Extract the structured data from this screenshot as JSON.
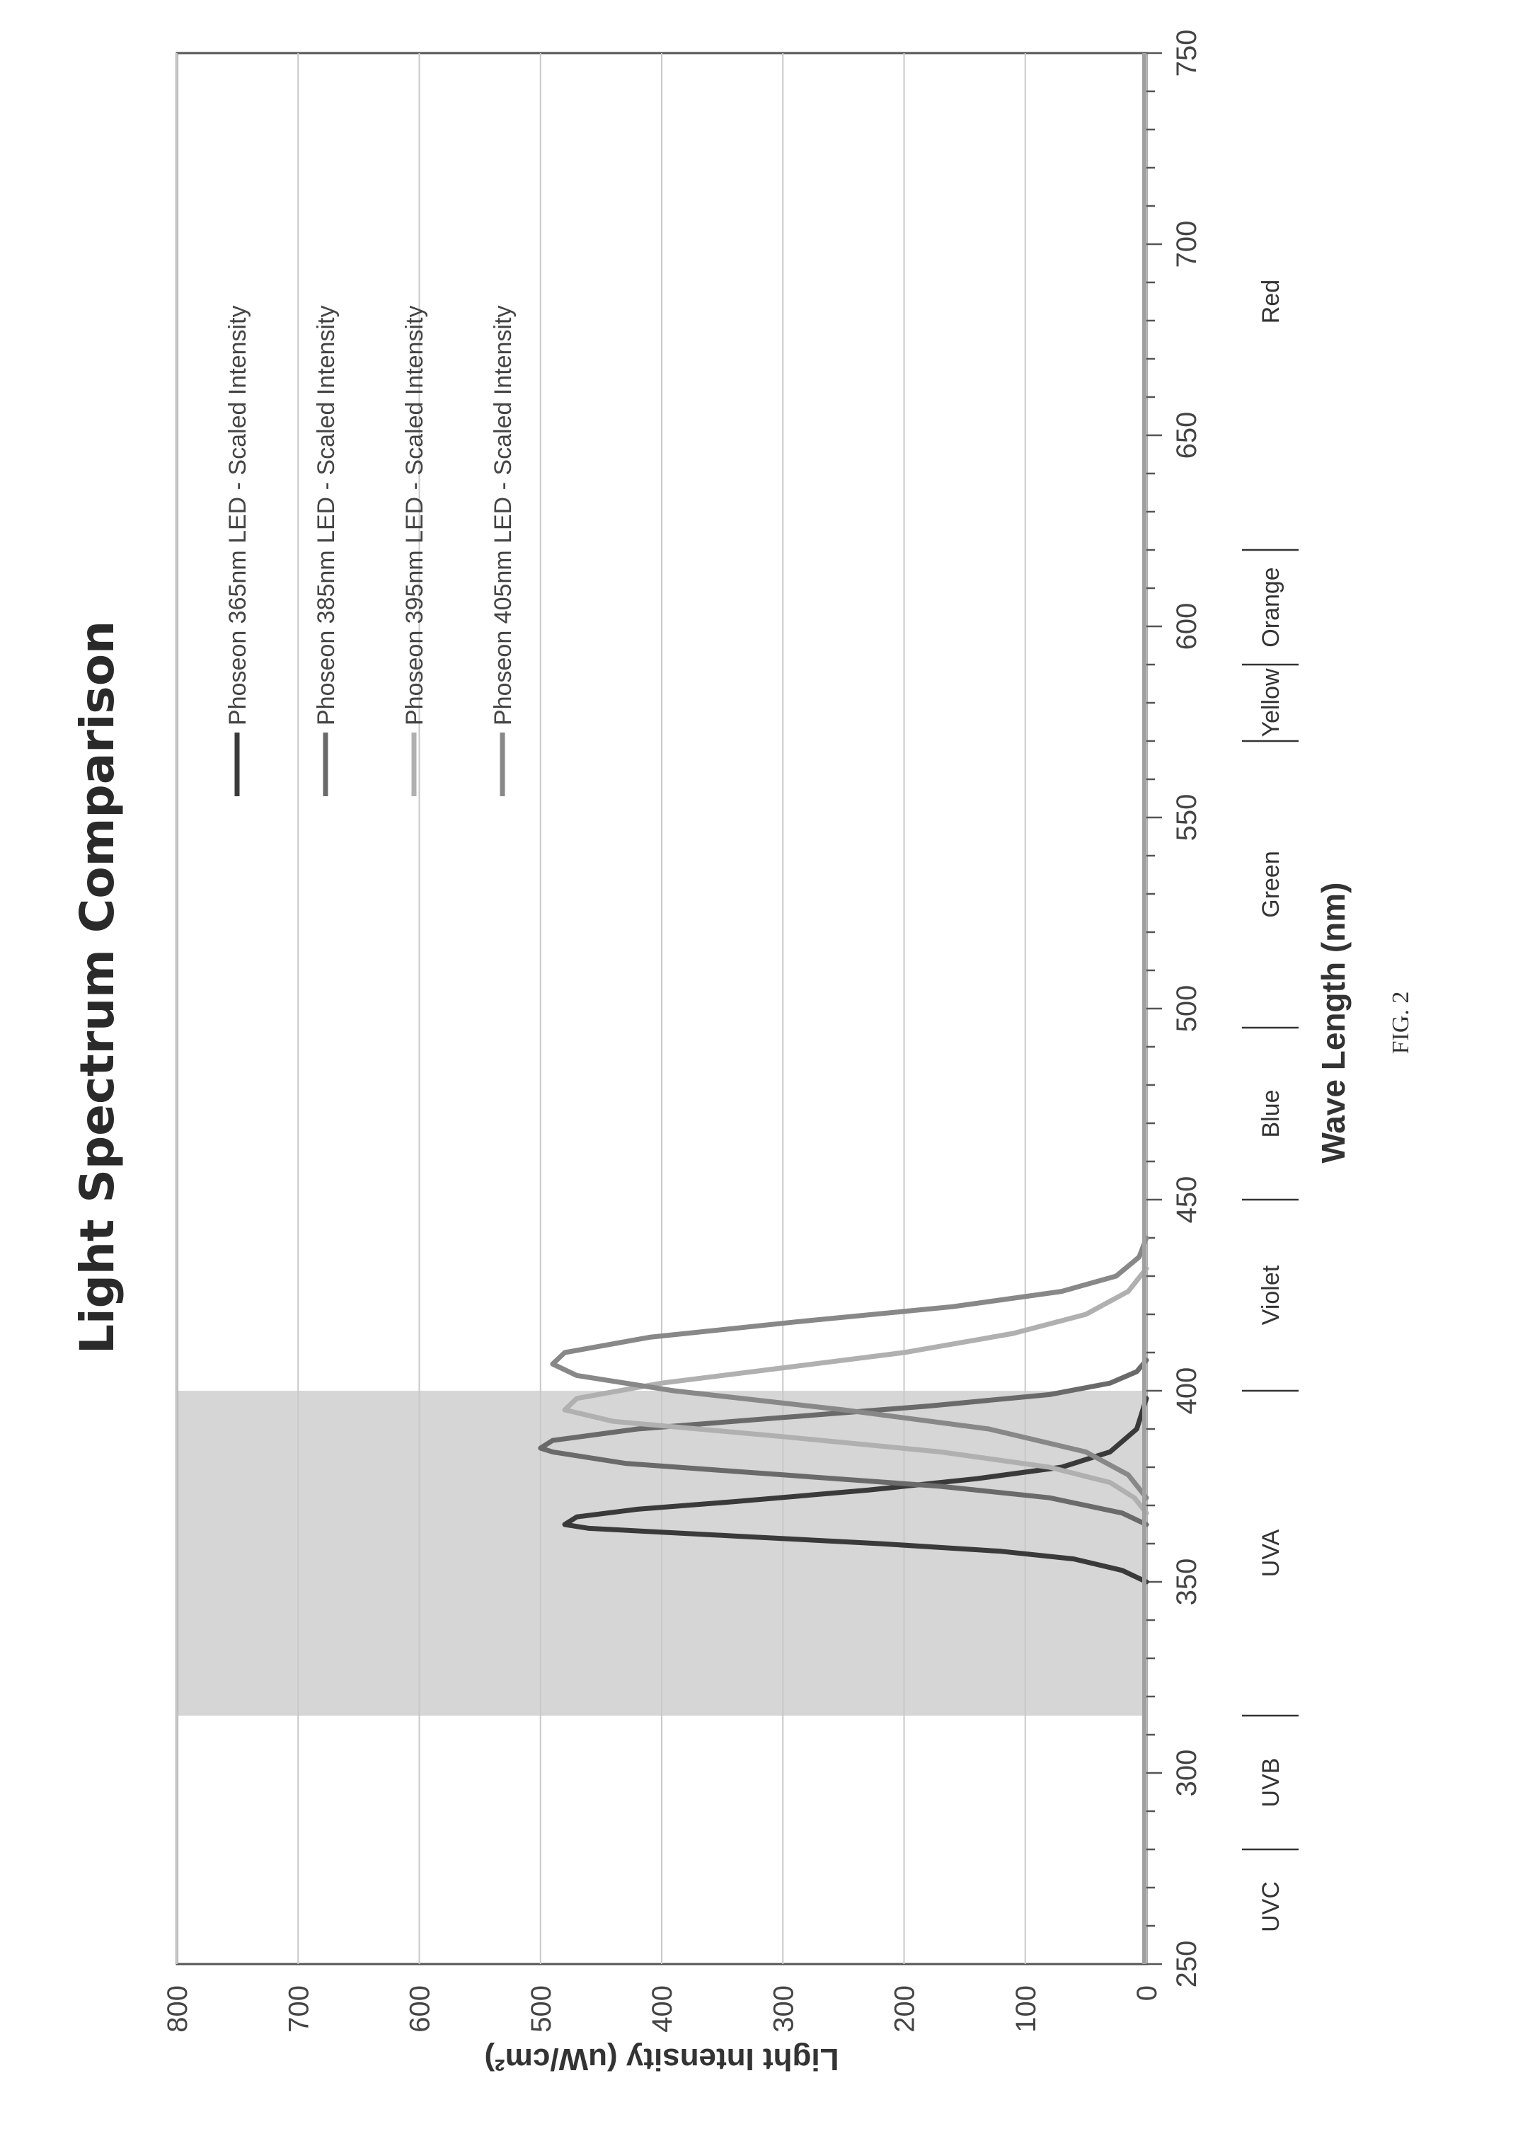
{
  "figure": {
    "caption": "FIG. 2"
  },
  "chart_data": {
    "type": "line",
    "title": "Light Spectrum Comparison",
    "xlabel": "Wave Length (nm)",
    "ylabel": "Light Intensity (uW/cm²)",
    "xlim": [
      250,
      750
    ],
    "ylim": [
      0,
      800
    ],
    "x_ticks": [
      "250",
      "300",
      "350",
      "400",
      "450",
      "500",
      "550",
      "600",
      "650",
      "700",
      "750"
    ],
    "y_ticks": [
      "0",
      "100",
      "200",
      "300",
      "400",
      "500",
      "600",
      "700",
      "800"
    ],
    "grid": true,
    "legend_position": "top-right",
    "shaded_region": {
      "x_start": 315,
      "x_end": 400,
      "color": "#c8c8c8"
    },
    "spectral_bands": [
      {
        "label": "UVC",
        "x_start": 250,
        "x_end": 280
      },
      {
        "label": "UVB",
        "x_start": 280,
        "x_end": 315
      },
      {
        "label": "UVA",
        "x_start": 315,
        "x_end": 400
      },
      {
        "label": "Violet",
        "x_start": 400,
        "x_end": 450
      },
      {
        "label": "Blue",
        "x_start": 450,
        "x_end": 495
      },
      {
        "label": "Green",
        "x_start": 495,
        "x_end": 570
      },
      {
        "label": "Yellow",
        "x_start": 570,
        "x_end": 590
      },
      {
        "label": "Orange",
        "x_start": 590,
        "x_end": 620
      },
      {
        "label": "Red",
        "x_start": 620,
        "x_end": 750
      }
    ],
    "series": [
      {
        "name": "Phoseon 365nm LED - Scaled Intensity",
        "color": "#3a3a3a",
        "x": [
          350,
          353,
          356,
          358,
          360,
          362,
          364,
          365,
          367,
          369,
          371,
          374,
          377,
          380,
          384,
          390,
          398
        ],
        "y": [
          0,
          20,
          60,
          120,
          220,
          340,
          460,
          480,
          470,
          420,
          340,
          230,
          140,
          70,
          30,
          8,
          0
        ]
      },
      {
        "name": "Phoseon 385nm LED - Scaled Intensity",
        "color": "#6a6a6a",
        "x": [
          365,
          368,
          372,
          375,
          378,
          381,
          384,
          385,
          387,
          390,
          393,
          396,
          399,
          402,
          405,
          408
        ],
        "y": [
          0,
          20,
          80,
          170,
          300,
          430,
          490,
          500,
          490,
          420,
          300,
          180,
          80,
          30,
          8,
          0
        ]
      },
      {
        "name": "Phoseon 395nm LED - Scaled Intensity",
        "color": "#b0b0b0",
        "x": [
          368,
          372,
          376,
          380,
          384,
          388,
          392,
          395,
          398,
          402,
          406,
          410,
          415,
          420,
          426,
          432
        ],
        "y": [
          0,
          10,
          30,
          80,
          170,
          300,
          440,
          480,
          470,
          400,
          300,
          200,
          110,
          50,
          15,
          0
        ]
      },
      {
        "name": "Phoseon 405nm LED - Scaled Intensity",
        "color": "#888888",
        "x": [
          372,
          378,
          384,
          390,
          395,
          400,
          404,
          407,
          410,
          414,
          418,
          422,
          426,
          430,
          435,
          440
        ],
        "y": [
          0,
          15,
          50,
          130,
          250,
          390,
          470,
          490,
          480,
          410,
          290,
          160,
          70,
          25,
          6,
          0
        ]
      }
    ]
  }
}
